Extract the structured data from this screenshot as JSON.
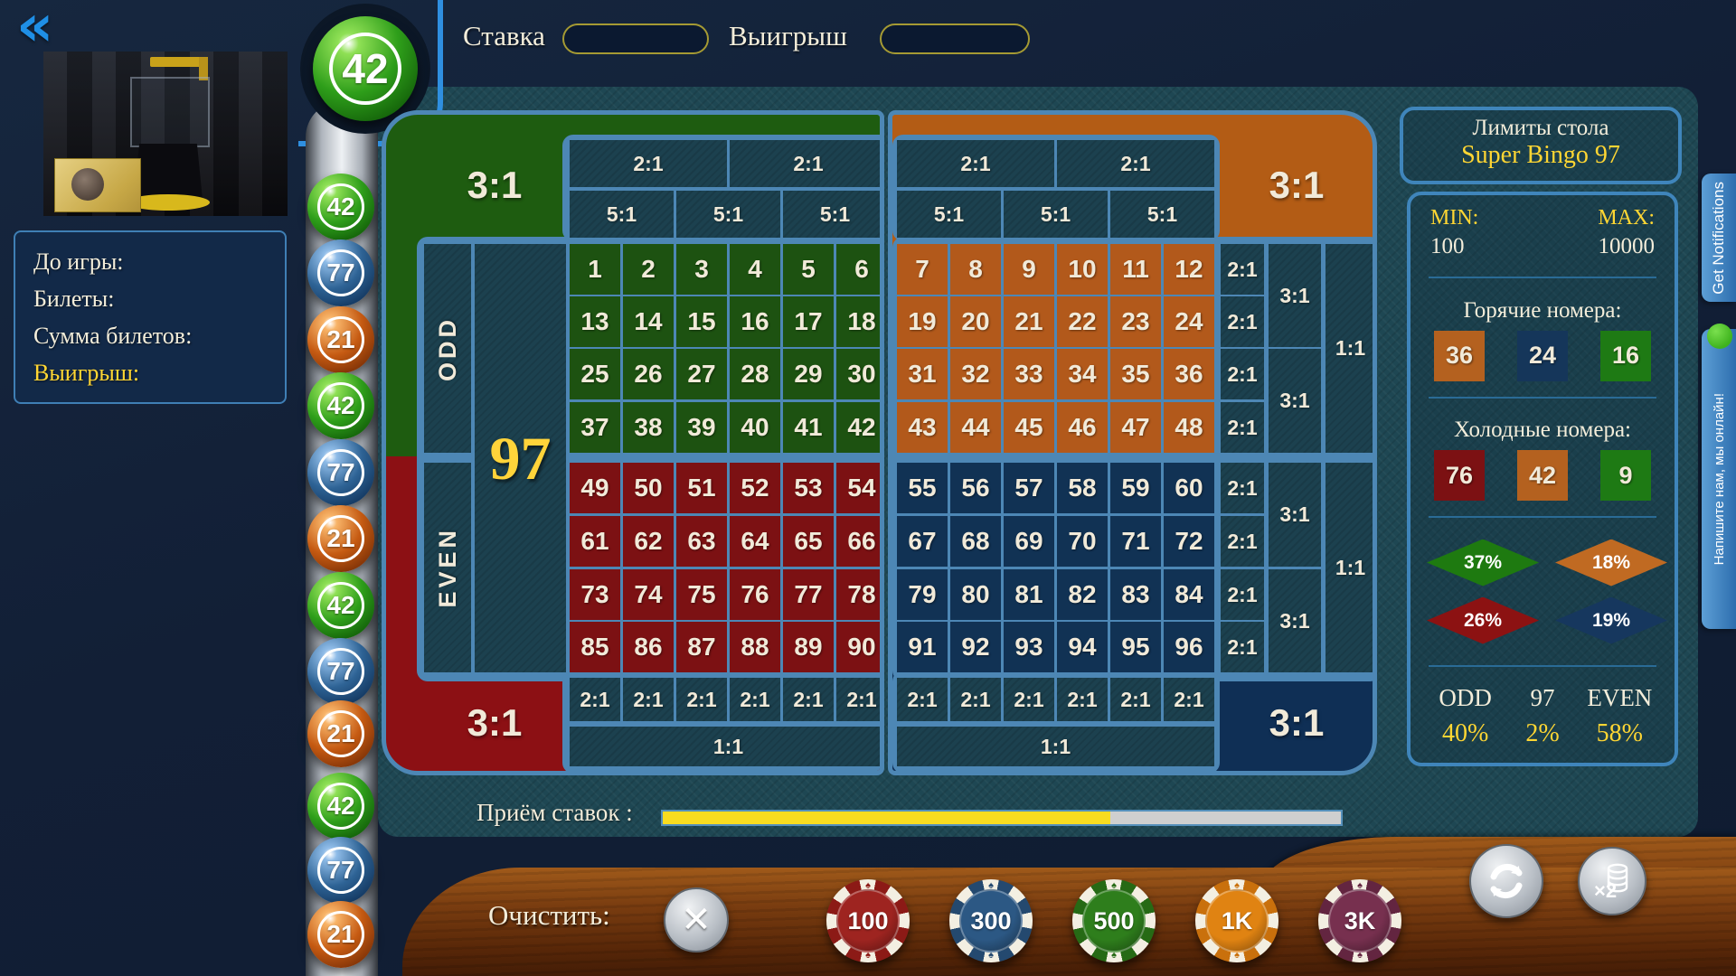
{
  "top_bar": {
    "back_icon": "«",
    "stake_label": "Ставка",
    "stake_value": "",
    "win_label": "Выигрыш",
    "win_value": ""
  },
  "current_ball": {
    "number": "42",
    "color": "green"
  },
  "ball_history": [
    {
      "number": "42",
      "color": "green"
    },
    {
      "number": "77",
      "color": "blue"
    },
    {
      "number": "21",
      "color": "orange"
    },
    {
      "number": "42",
      "color": "green"
    },
    {
      "number": "77",
      "color": "blue"
    },
    {
      "number": "21",
      "color": "orange"
    },
    {
      "number": "42",
      "color": "green"
    },
    {
      "number": "77",
      "color": "blue"
    },
    {
      "number": "21",
      "color": "orange"
    },
    {
      "number": "42",
      "color": "green"
    },
    {
      "number": "77",
      "color": "blue"
    },
    {
      "number": "21",
      "color": "orange"
    }
  ],
  "info_panel": {
    "rows": [
      {
        "label": "До игры:",
        "value": "",
        "highlight": false
      },
      {
        "label": "Билеты:",
        "value": "",
        "highlight": false
      },
      {
        "label": "Сумма билетов:",
        "value": "",
        "highlight": false
      },
      {
        "label": "Выигрыш:",
        "value": "",
        "highlight": true
      }
    ]
  },
  "table": {
    "center_number": "97",
    "odd_label": "ODD",
    "even_label": "EVEN",
    "corner_bet": "3:1",
    "header_double": "2:1",
    "header_five": "5:1",
    "column_double": "2:1",
    "column_triple": "3:1",
    "column_even": "1:1",
    "bottom_double": "2:1",
    "bottom_even": "1:1",
    "left_rows": [
      [
        1,
        2,
        3,
        4,
        5,
        6
      ],
      [
        13,
        14,
        15,
        16,
        17,
        18
      ],
      [
        25,
        26,
        27,
        28,
        29,
        30
      ],
      [
        37,
        38,
        39,
        40,
        41,
        42
      ],
      [
        49,
        50,
        51,
        52,
        53,
        54
      ],
      [
        61,
        62,
        63,
        64,
        65,
        66
      ],
      [
        73,
        74,
        75,
        76,
        77,
        78
      ],
      [
        85,
        86,
        87,
        88,
        89,
        90
      ]
    ],
    "right_rows": [
      [
        7,
        8,
        9,
        10,
        11,
        12
      ],
      [
        19,
        20,
        21,
        22,
        23,
        24
      ],
      [
        31,
        32,
        33,
        34,
        35,
        36
      ],
      [
        43,
        44,
        45,
        46,
        47,
        48
      ],
      [
        55,
        56,
        57,
        58,
        59,
        60
      ],
      [
        67,
        68,
        69,
        70,
        71,
        72
      ],
      [
        79,
        80,
        81,
        82,
        83,
        84
      ],
      [
        91,
        92,
        93,
        94,
        95,
        96
      ]
    ],
    "cell_colors": {
      "green": "#1d5211",
      "orange": "#b2591b",
      "red": "#7c1113",
      "navy": "#113254"
    }
  },
  "right_panel": {
    "limits_title": "Лимиты стола",
    "table_name": "Super Bingo 97",
    "min_label": "MIN:",
    "max_label": "MAX:",
    "min_value": "100",
    "max_value": "10000",
    "hot_title": "Горячие номера:",
    "hot_numbers": [
      {
        "number": "36",
        "color": "#b4611f"
      },
      {
        "number": "24",
        "color": "#15365a"
      },
      {
        "number": "16",
        "color": "#1e7a14"
      }
    ],
    "cold_title": "Холодные номера:",
    "cold_numbers": [
      {
        "number": "76",
        "color": "#7c1113"
      },
      {
        "number": "42",
        "color": "#b4611f"
      },
      {
        "number": "9",
        "color": "#1e7a14"
      }
    ],
    "diamonds": [
      {
        "value": "37%",
        "color": "#1e7a10"
      },
      {
        "value": "18%",
        "color": "#c06a22"
      },
      {
        "value": "26%",
        "color": "#8c1212"
      },
      {
        "value": "19%",
        "color": "#16375e"
      }
    ],
    "parity": {
      "odd_label": "ODD",
      "center_label": "97",
      "even_label": "EVEN",
      "odd_pct": "40%",
      "center_pct": "2%",
      "even_pct": "58%"
    }
  },
  "side_tabs": {
    "notifications_label": "Get Notifications",
    "chat_label": "Напишите нам, мы онлайн!"
  },
  "betting": {
    "label": "Приём ставок :",
    "progress_percent": 66
  },
  "bottom_bar": {
    "clear_label": "Очистить:",
    "clear_icon": "✕",
    "multiplier_label": "×2",
    "chips": [
      {
        "label": "100",
        "color": "#9e2420",
        "ring": "#8c1a16"
      },
      {
        "label": "300",
        "color": "#2c5884",
        "ring": "#24496f"
      },
      {
        "label": "500",
        "color": "#2e7e1c",
        "ring": "#266a15"
      },
      {
        "label": "1K",
        "color": "#e08312",
        "ring": "#c9700c"
      },
      {
        "label": "3K",
        "color": "#77304f",
        "ring": "#632540"
      }
    ]
  }
}
